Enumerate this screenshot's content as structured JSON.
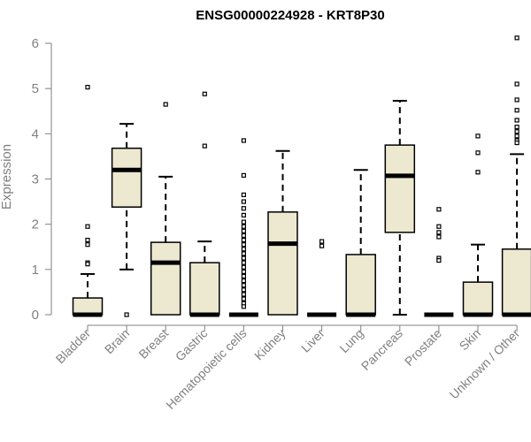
{
  "chart_data": {
    "type": "boxplot",
    "title": "ENSG00000224928 - KRT8P30",
    "ylabel": "Expression",
    "xlabel": "",
    "ylim": [
      0,
      6.2
    ],
    "yticks": [
      "0",
      "1",
      "2",
      "3",
      "4",
      "5",
      "6"
    ],
    "grid": false,
    "box_fill": "#EDE8D0",
    "box_stroke": "#000000",
    "axis_color": "#808080",
    "categories": [
      "Bladder",
      "Brain",
      "Breast",
      "Gastric",
      "Hematopoietic cells",
      "Kidney",
      "Liver",
      "Lung",
      "Pancreas",
      "Prostate",
      "Skin",
      "Unknown / Other"
    ],
    "boxes": [
      {
        "category": "Bladder",
        "whisker_low": 0,
        "q1": 0,
        "median": 0,
        "q3": 0.37,
        "whisker_high": 0.9,
        "outliers": [
          5.03,
          1.95,
          1.65,
          1.55,
          1.15,
          1.12
        ]
      },
      {
        "category": "Brain",
        "whisker_low": 1.0,
        "q1": 2.38,
        "median": 3.2,
        "q3": 3.68,
        "whisker_high": 4.22,
        "outliers": [
          0
        ]
      },
      {
        "category": "Breast",
        "whisker_low": 0,
        "q1": 0,
        "median": 1.15,
        "q3": 1.6,
        "whisker_high": 3.05,
        "outliers": [
          4.65
        ]
      },
      {
        "category": "Gastric",
        "whisker_low": 0,
        "q1": 0,
        "median": 0,
        "q3": 1.15,
        "whisker_high": 1.62,
        "outliers": [
          4.88,
          3.73
        ]
      },
      {
        "category": "Hematopoietic cells",
        "whisker_low": 0,
        "q1": 0,
        "median": 0,
        "q3": 0,
        "whisker_high": 0,
        "outliers": [
          3.85,
          3.08,
          2.65,
          2.5,
          2.35,
          2.2,
          2.05,
          1.95,
          1.85,
          1.75,
          1.65,
          1.55,
          1.45,
          1.35,
          1.25,
          1.15,
          1.05,
          0.95,
          0.85,
          0.75,
          0.65,
          0.55,
          0.45,
          0.35,
          0.25,
          0.18
        ]
      },
      {
        "category": "Kidney",
        "whisker_low": 0,
        "q1": 0,
        "median": 1.57,
        "q3": 2.27,
        "whisker_high": 3.62,
        "outliers": []
      },
      {
        "category": "Liver",
        "whisker_low": 0,
        "q1": 0,
        "median": 0,
        "q3": 0,
        "whisker_high": 0,
        "outliers": [
          1.62,
          1.52
        ]
      },
      {
        "category": "Lung",
        "whisker_low": 0,
        "q1": 0,
        "median": 0,
        "q3": 1.33,
        "whisker_high": 3.2,
        "outliers": []
      },
      {
        "category": "Pancreas",
        "whisker_low": 0,
        "q1": 1.82,
        "median": 3.07,
        "q3": 3.75,
        "whisker_high": 4.73,
        "outliers": []
      },
      {
        "category": "Prostate",
        "whisker_low": 0,
        "q1": 0,
        "median": 0,
        "q3": 0,
        "whisker_high": 0,
        "outliers": [
          2.33,
          1.95,
          1.82,
          1.72,
          1.25,
          1.2
        ]
      },
      {
        "category": "Skin",
        "whisker_low": 0,
        "q1": 0,
        "median": 0,
        "q3": 0.72,
        "whisker_high": 1.55,
        "outliers": [
          3.95,
          3.58,
          3.15
        ]
      },
      {
        "category": "Unknown / Other",
        "whisker_low": 0,
        "q1": 0,
        "median": 0,
        "q3": 1.45,
        "whisker_high": 3.55,
        "outliers": [
          6.12,
          5.1,
          4.75,
          4.52,
          4.3,
          4.15,
          4.05,
          3.95,
          3.85,
          3.8
        ]
      }
    ]
  }
}
